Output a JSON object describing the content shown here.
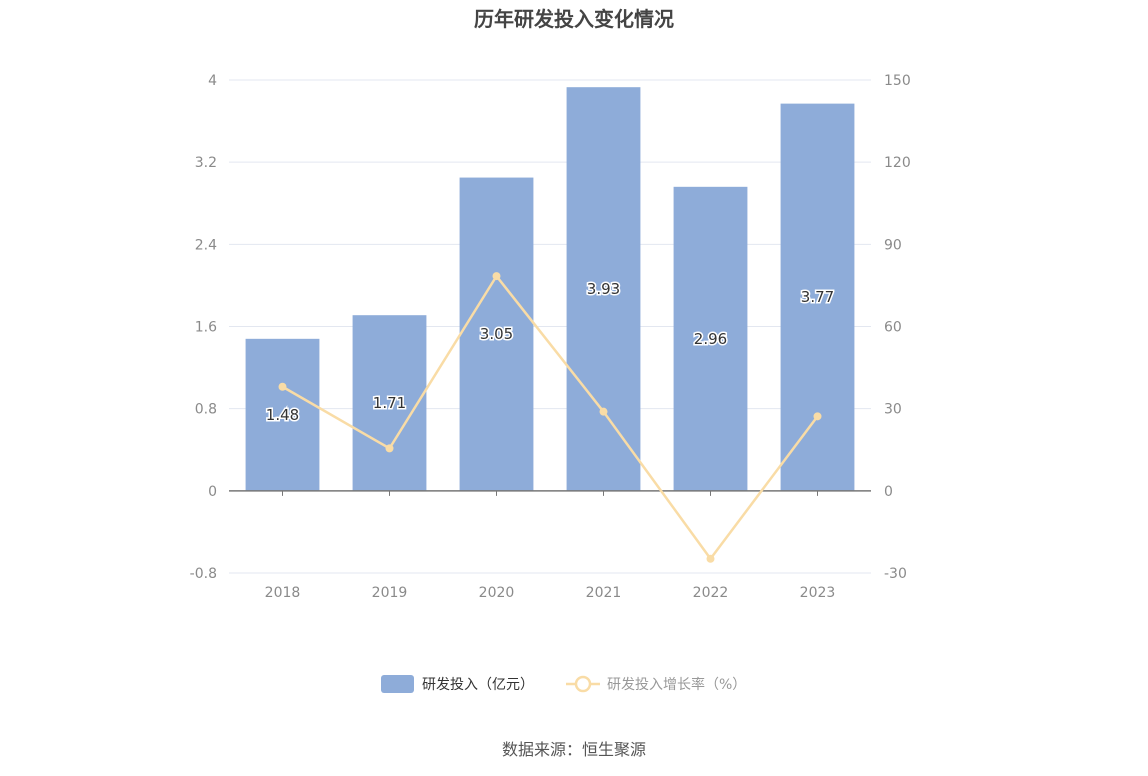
{
  "chart_data": {
    "type": "bar",
    "title": "历年研发投入变化情况",
    "categories": [
      "2018",
      "2019",
      "2020",
      "2021",
      "2022",
      "2023"
    ],
    "series": [
      {
        "name": "研发投入（亿元）",
        "type": "bar",
        "axis": "left",
        "color": "#8eacd9",
        "values": [
          1.48,
          1.71,
          3.05,
          3.93,
          2.96,
          3.77
        ],
        "labels": [
          "1.48",
          "1.71",
          "3.05",
          "3.93",
          "2.96",
          "3.77"
        ]
      },
      {
        "name": "研发投入增长率（%）",
        "type": "line",
        "axis": "right",
        "color": "#f9dca6",
        "values": [
          38,
          15.5,
          78.4,
          28.9,
          -24.8,
          27.2
        ]
      }
    ],
    "y_left": {
      "min": -0.8,
      "max": 4,
      "ticks": [
        "-0.8",
        "0",
        "0.8",
        "1.6",
        "2.4",
        "3.2",
        "4"
      ]
    },
    "y_right": {
      "min": -30,
      "max": 150,
      "ticks": [
        "-30",
        "0",
        "30",
        "60",
        "90",
        "120",
        "150"
      ]
    },
    "grid": true,
    "legend_position": "bottom",
    "source": "数据来源：恒生聚源"
  }
}
